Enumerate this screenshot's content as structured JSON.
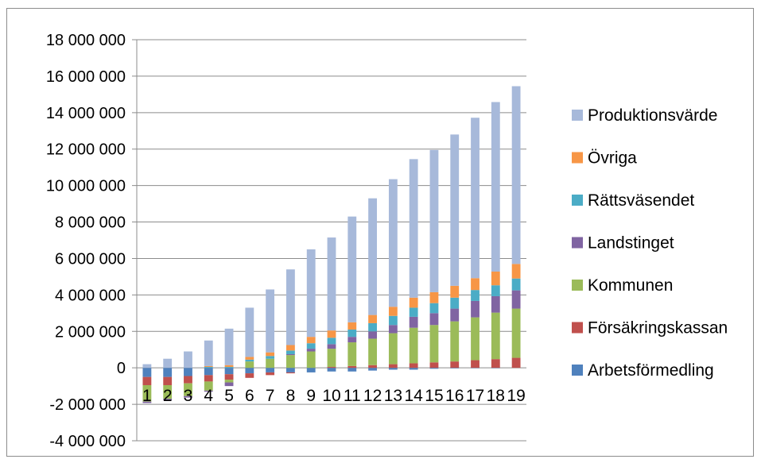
{
  "chart_data": {
    "type": "bar",
    "stacked": true,
    "categories": [
      "1",
      "2",
      "3",
      "4",
      "5",
      "6",
      "7",
      "8",
      "9",
      "10",
      "11",
      "12",
      "13",
      "14",
      "15",
      "16",
      "17",
      "18",
      "19"
    ],
    "ylim": [
      -4000000,
      18000000
    ],
    "yticks": [
      -4000000,
      -2000000,
      0,
      2000000,
      4000000,
      6000000,
      8000000,
      10000000,
      12000000,
      14000000,
      16000000,
      18000000
    ],
    "ytick_labels": [
      "-4 000 000",
      "-2 000 000",
      "0",
      "2 000 000",
      "4 000 000",
      "6 000 000",
      "8 000 000",
      "10 000 000",
      "12 000 000",
      "14 000 000",
      "16 000 000",
      "18 000 000"
    ],
    "grid": true,
    "legend_position": "right",
    "series": [
      {
        "name": "Arbetsförmedling",
        "color": "#4F81BD",
        "values": [
          -500000,
          -500000,
          -450000,
          -400000,
          -350000,
          -300000,
          -250000,
          -250000,
          -250000,
          -200000,
          -200000,
          -150000,
          -100000,
          -100000,
          -50000,
          -30000,
          -20000,
          -10000,
          0
        ]
      },
      {
        "name": "Försäkringskassan",
        "color": "#C0504D",
        "values": [
          -450000,
          -450000,
          -400000,
          -350000,
          -300000,
          -250000,
          -150000,
          -50000,
          0,
          50000,
          100000,
          150000,
          200000,
          250000,
          300000,
          350000,
          420000,
          480000,
          550000
        ]
      },
      {
        "name": "Kommunen",
        "color": "#9BBB59",
        "values": [
          -900000,
          -750000,
          -700000,
          -500000,
          -150000,
          350000,
          500000,
          700000,
          900000,
          1000000,
          1300000,
          1450000,
          1700000,
          1950000,
          2050000,
          2200000,
          2350000,
          2550000,
          2700000
        ]
      },
      {
        "name": "Landstinget",
        "color": "#8064A2",
        "values": [
          -80000,
          -80000,
          -80000,
          -60000,
          -200000,
          0,
          0,
          50000,
          150000,
          250000,
          300000,
          400000,
          450000,
          600000,
          650000,
          700000,
          900000,
          900000,
          1000000
        ]
      },
      {
        "name": "Rättsväsendet",
        "color": "#4BACC6",
        "values": [
          0,
          0,
          0,
          50000,
          50000,
          100000,
          150000,
          200000,
          300000,
          350000,
          400000,
          450000,
          500000,
          500000,
          550000,
          600000,
          600000,
          600000,
          650000
        ]
      },
      {
        "name": "Övriga",
        "color": "#F79646",
        "values": [
          0,
          0,
          0,
          50000,
          100000,
          150000,
          200000,
          300000,
          350000,
          400000,
          400000,
          450000,
          500000,
          550000,
          600000,
          650000,
          650000,
          750000,
          800000
        ]
      },
      {
        "name": "Produktionsvärde",
        "color": "#A7B9DA",
        "values": [
          200000,
          500000,
          900000,
          1400000,
          2000000,
          2700000,
          3450000,
          4150000,
          4800000,
          5100000,
          5800000,
          6400000,
          7000000,
          7600000,
          7800000,
          8300000,
          8800000,
          9300000,
          9750000
        ]
      }
    ]
  }
}
